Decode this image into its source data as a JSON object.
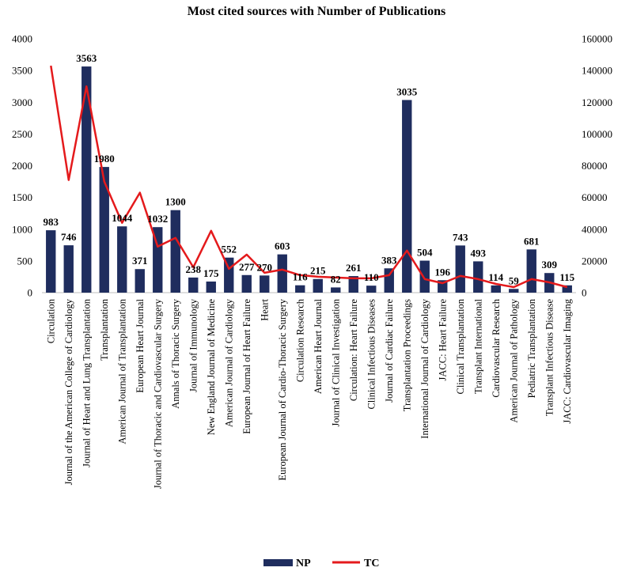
{
  "chart_data": {
    "type": "bar",
    "title": "Most cited sources with Number of Publications",
    "categories": [
      "Circulation",
      "Journal of the American College of Cardiology",
      "Journal of Heart and Lung Transplantation",
      "Transplantation",
      "American Journal of Transplantation",
      "European Heart Journal",
      "Journal of Thoracic and Cardiovascular Surgery",
      "Annals of Thoracic Surgery",
      "Journal of Immunology",
      "New England Journal of Medicine",
      "American Journal of Cardiology",
      "European Journal of Heart Failure",
      "Heart",
      "European Journal of Cardio-Thoracic Surgery",
      "Circulation Research",
      "American Heart Journal",
      "Journal of Clinical Investigation",
      "Circulation: Heart Failure",
      "Clinical Infectious Diseases",
      "Journal of Cardiac Failure",
      "Transplantation Proceedings",
      "International Journal of Cardiology",
      "JACC: Heart Failure",
      "Clinical Transplantation",
      "Transplant International",
      "Cardiovascular Research",
      "American Journal of Pathology",
      "Pediatric Transplantation",
      "Transplant Infectious Disease",
      "JACC: Cardiovascular Imaging"
    ],
    "series": [
      {
        "name": "NP",
        "axis": "left",
        "kind": "bar",
        "color": "#1f2d5e",
        "values": [
          983,
          746,
          3563,
          1980,
          1044,
          371,
          1032,
          1300,
          238,
          175,
          552,
          277,
          270,
          603,
          116,
          215,
          82,
          261,
          110,
          383,
          3035,
          504,
          196,
          743,
          493,
          114,
          59,
          681,
          309,
          115
        ]
      },
      {
        "name": "TC",
        "axis": "right",
        "kind": "line",
        "color": "#e41a1c",
        "values": [
          143000,
          71000,
          130000,
          70000,
          44000,
          63000,
          29000,
          34500,
          16000,
          39000,
          15000,
          24000,
          12500,
          14500,
          11000,
          10000,
          9500,
          9000,
          9000,
          11000,
          26500,
          8500,
          6000,
          10500,
          8500,
          5500,
          3500,
          8500,
          6500,
          3500
        ]
      }
    ],
    "data_labels": [
      "983",
      "746",
      "3563",
      "1980",
      "1044",
      "371",
      "1032",
      "1300",
      "238",
      "175",
      "552",
      "277",
      "270",
      "603",
      "116",
      "215",
      "82",
      "261",
      "110",
      "383",
      "3035",
      "504",
      "196",
      "743",
      "493",
      "114",
      "59",
      "681",
      "309",
      "115"
    ],
    "ylim_left": [
      0,
      4000
    ],
    "yticks_left": [
      "0",
      "500",
      "1000",
      "1500",
      "2000",
      "2500",
      "3000",
      "3500",
      "4000"
    ],
    "ylim_right": [
      0,
      160000
    ],
    "yticks_right": [
      "0",
      "20000",
      "40000",
      "60000",
      "80000",
      "100000",
      "120000",
      "140000",
      "160000"
    ],
    "grid": false,
    "legend": {
      "position": "bottom",
      "entries": [
        "NP",
        "TC"
      ]
    }
  }
}
